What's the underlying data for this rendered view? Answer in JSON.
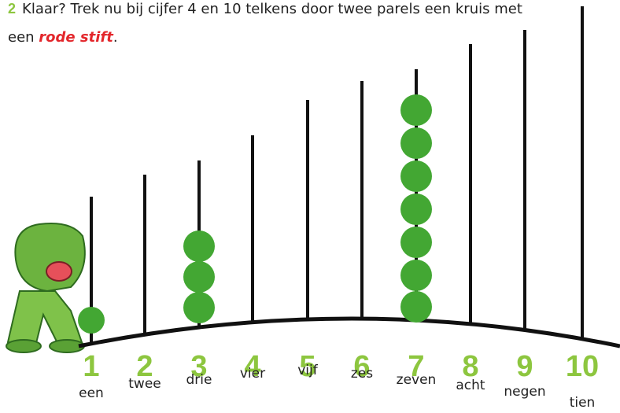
{
  "instruction": {
    "number": "2",
    "text_before": "Klaar? Trek nu bij cijfer 4 en 10 telkens door twee parels een kruis met een ",
    "emphasis": "rode stift",
    "text_after": "."
  },
  "rods": [
    {
      "numeral": "1",
      "word": "een"
    },
    {
      "numeral": "2",
      "word": "twee"
    },
    {
      "numeral": "3",
      "word": "drie"
    },
    {
      "numeral": "4",
      "word": "vier"
    },
    {
      "numeral": "5",
      "word": "vijf"
    },
    {
      "numeral": "6",
      "word": "zes"
    },
    {
      "numeral": "7",
      "word": "zeven"
    },
    {
      "numeral": "8",
      "word": "acht"
    },
    {
      "numeral": "9",
      "word": "negen"
    },
    {
      "numeral": "10",
      "word": "tien"
    }
  ]
}
